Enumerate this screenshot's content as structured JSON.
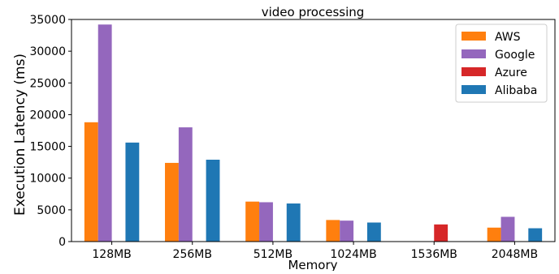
{
  "chart_data": {
    "type": "bar",
    "title": "video processing",
    "xlabel": "Memory",
    "ylabel": "Execution Latency (ms)",
    "categories": [
      "128MB",
      "256MB",
      "512MB",
      "1024MB",
      "1536MB",
      "2048MB"
    ],
    "ylim": [
      0,
      35000
    ],
    "yticks": [
      0,
      5000,
      10000,
      15000,
      20000,
      25000,
      30000,
      35000
    ],
    "grid": false,
    "legend_position": "top-right",
    "series": [
      {
        "name": "AWS",
        "color": "#ff7f0e",
        "values": [
          18800,
          12400,
          6300,
          3400,
          null,
          2200
        ]
      },
      {
        "name": "Google",
        "color": "#9467bd",
        "values": [
          34200,
          18000,
          6200,
          3300,
          null,
          3900
        ]
      },
      {
        "name": "Azure",
        "color": "#d62728",
        "values": [
          null,
          null,
          null,
          null,
          2700,
          null
        ]
      },
      {
        "name": "Alibaba",
        "color": "#1f77b4",
        "values": [
          15600,
          12900,
          6000,
          3000,
          null,
          2100
        ]
      }
    ]
  }
}
